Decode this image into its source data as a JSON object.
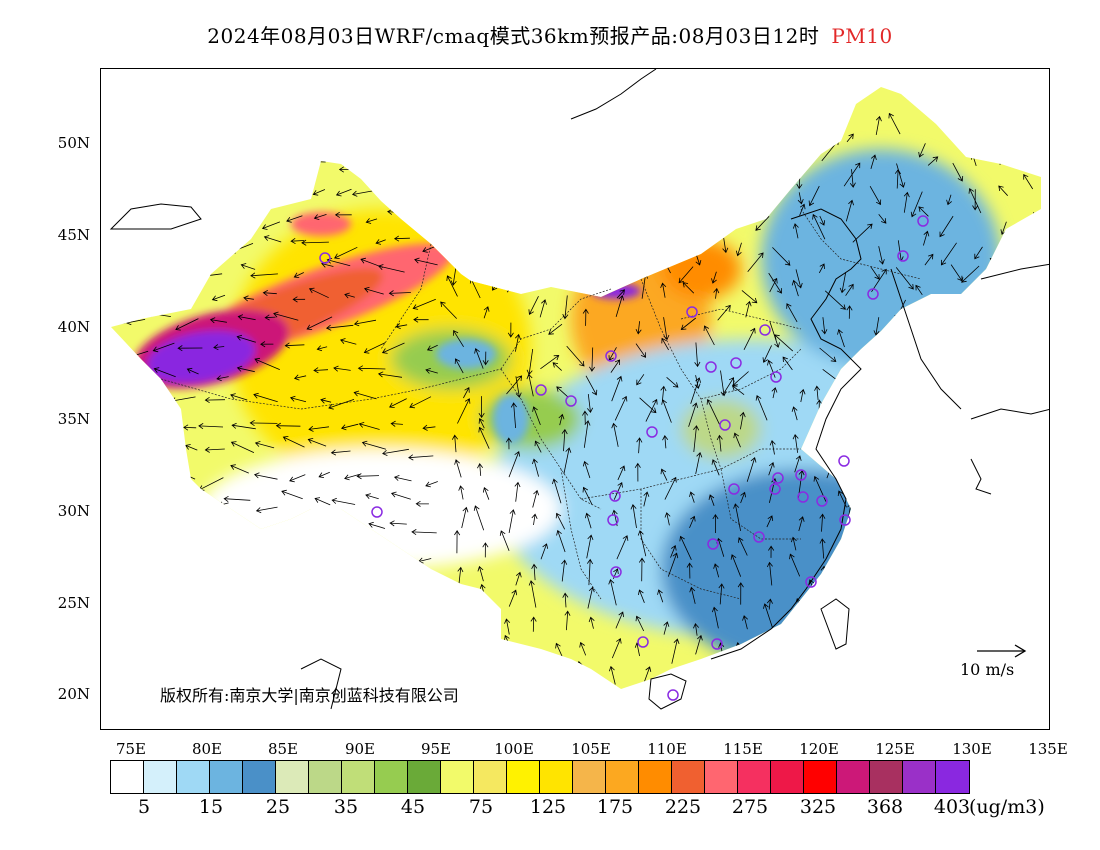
{
  "title": {
    "main": "2024年08月03日WRF/cmaq模式36km预报产品:08月03日12时",
    "pollutant": "PM10",
    "pollutant_color": "#e22828"
  },
  "map": {
    "y_ticks": [
      "50N",
      "45N",
      "40N",
      "35N",
      "30N",
      "25N",
      "20N"
    ],
    "x_ticks": [
      "75E",
      "80E",
      "85E",
      "90E",
      "95E",
      "100E",
      "105E",
      "110E",
      "115E",
      "120E",
      "125E",
      "130E",
      "135E"
    ],
    "copyright": "版权所有:南京大学|南京创蓝科技有限公司",
    "wind_scale_label": "10 m/s",
    "station_marker_color": "#8a2be2"
  },
  "colorbar": {
    "colors": [
      "#ffffff",
      "#d4f0fb",
      "#9fd9f5",
      "#6cb4e0",
      "#4a90c8",
      "#dceab8",
      "#bcd888",
      "#c0de78",
      "#96cc50",
      "#6aaa38",
      "#f2fa6a",
      "#f5e860",
      "#fff200",
      "#ffe400",
      "#f5b54a",
      "#fca820",
      "#ff8c00",
      "#f06030",
      "#ff6670",
      "#f53060",
      "#ee1848",
      "#ff0000",
      "#cc1878",
      "#a83060",
      "#9a30c8",
      "#8a28e0"
    ],
    "labels": [
      "5",
      "15",
      "25",
      "35",
      "45",
      "75",
      "125",
      "175",
      "225",
      "275",
      "325",
      "368",
      "403"
    ],
    "unit": "(ug/m3)"
  }
}
